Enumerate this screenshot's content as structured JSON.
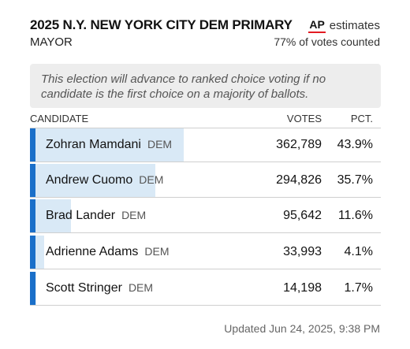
{
  "header": {
    "title": "2025 N.Y. NEW YORK CITY DEM PRIMARY",
    "subtitle": "MAYOR",
    "ap_logo": "AP",
    "estimates": "estimates",
    "counted": "77% of votes counted"
  },
  "note": "This election will advance to ranked choice voting if no candidate is the first choice on a majority of ballots.",
  "columns": {
    "candidate": "CANDIDATE",
    "votes": "VOTES",
    "pct": "PCT."
  },
  "candidates": [
    {
      "name": "Zohran Mamdani",
      "party": "DEM",
      "votes": "362,789",
      "pct": "43.9%",
      "share": 0.439
    },
    {
      "name": "Andrew Cuomo",
      "party": "DEM",
      "votes": "294,826",
      "pct": "35.7%",
      "share": 0.357
    },
    {
      "name": "Brad Lander",
      "party": "DEM",
      "votes": "95,642",
      "pct": "11.6%",
      "share": 0.116
    },
    {
      "name": "Adrienne Adams",
      "party": "DEM",
      "votes": "33,993",
      "pct": "4.1%",
      "share": 0.041
    },
    {
      "name": "Scott Stringer",
      "party": "DEM",
      "votes": "14,198",
      "pct": "1.7%",
      "share": 0.017
    }
  ],
  "footer": "Updated Jun 24, 2025, 9:38 PM",
  "colors": {
    "accent": "#1a6fc9",
    "bar": "#d9e9f6",
    "ap_red": "#e31b23"
  }
}
